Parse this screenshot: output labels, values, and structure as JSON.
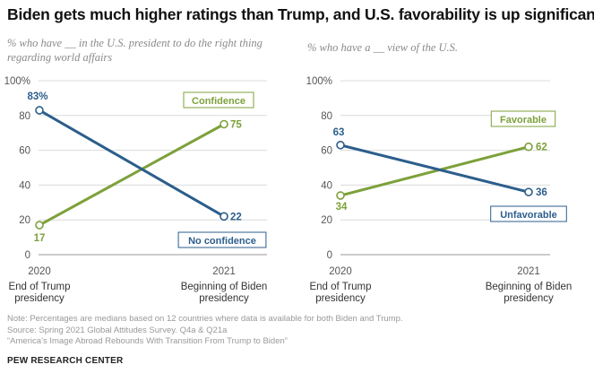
{
  "title": "Biden gets much higher ratings than Trump, and U.S. favorability is up significantly",
  "chart_data": [
    {
      "type": "line",
      "subtitle": "% who have __ in the U.S. president to do the right thing regarding world affairs",
      "x": [
        "2020",
        "2021"
      ],
      "x_sublabels": [
        "End of Trump presidency",
        "Beginning of Biden presidency"
      ],
      "y_ticks": [
        "100%",
        "80",
        "60",
        "40",
        "20",
        "0"
      ],
      "ylim": [
        0,
        100
      ],
      "series": [
        {
          "name": "Confidence",
          "values": [
            17,
            75
          ],
          "labels": [
            "17",
            "75"
          ],
          "color": "#7da13a"
        },
        {
          "name": "No confidence",
          "values": [
            83,
            22
          ],
          "labels": [
            "83%",
            "22"
          ],
          "color": "#2c5e8c"
        }
      ]
    },
    {
      "type": "line",
      "subtitle": "% who have a __ view of the U.S.",
      "x": [
        "2020",
        "2021"
      ],
      "x_sublabels": [
        "End of Trump presidency",
        "Beginning of Biden presidency"
      ],
      "y_ticks": [
        "100%",
        "80",
        "60",
        "40",
        "20",
        "0"
      ],
      "ylim": [
        0,
        100
      ],
      "series": [
        {
          "name": "Favorable",
          "values": [
            34,
            62
          ],
          "labels": [
            "34",
            "62"
          ],
          "color": "#7da13a"
        },
        {
          "name": "Unfavorable",
          "values": [
            63,
            36
          ],
          "labels": [
            "63",
            "36"
          ],
          "color": "#2c5e8c"
        }
      ]
    }
  ],
  "notes": [
    "Note: Percentages are medians based on 12 countries where data is available for both Biden and Trump.",
    "Source: Spring 2021 Global Attitudes Survey. Q4a & Q21a",
    "“America’s Image Abroad Rebounds With Transition From Trump to Biden”"
  ],
  "brand": "PEW RESEARCH CENTER"
}
